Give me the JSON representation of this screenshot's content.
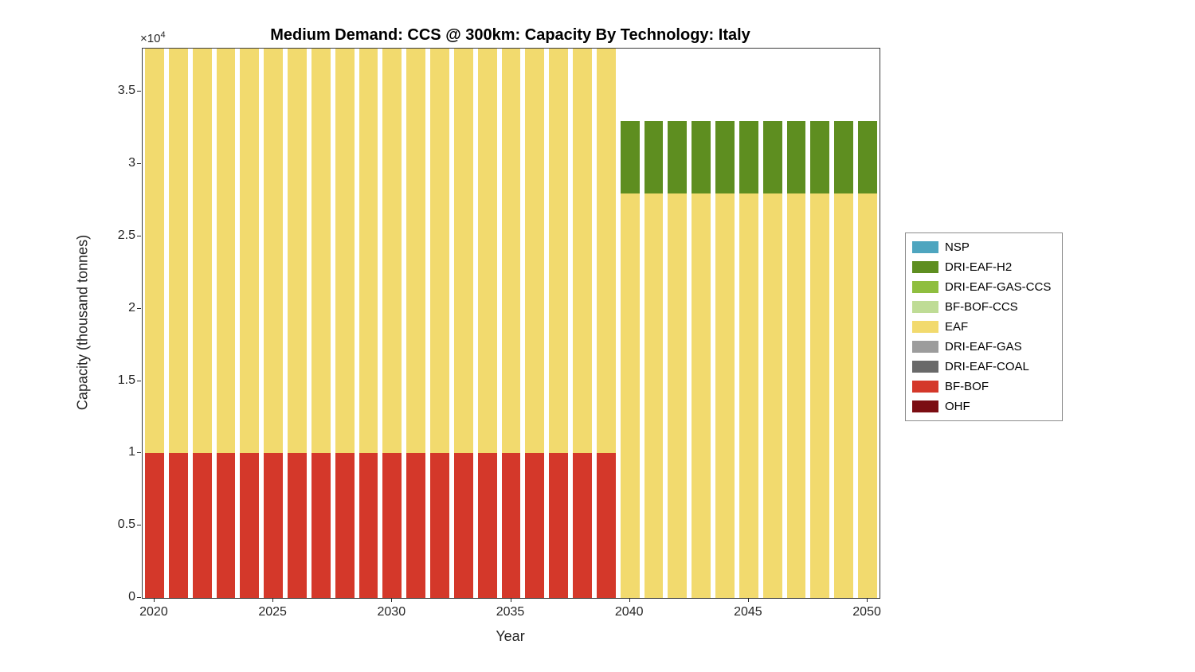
{
  "title": "Medium Demand: CCS @ 300km: Capacity By Technology: Italy",
  "axes": {
    "xlabel": "Year",
    "ylabel": "Capacity (thousand tonnes)",
    "y_multiplier_base": "×10",
    "y_multiplier_exp": "4"
  },
  "chart_data": {
    "type": "bar",
    "stacked": true,
    "title": "Medium Demand: CCS @ 300km: Capacity By Technology: Italy",
    "xlabel": "Year",
    "ylabel": "Capacity (thousand tonnes)",
    "ylim": [
      0,
      38000
    ],
    "bar_width_fraction": 0.8,
    "grid": false,
    "legend_position": "outside-right",
    "note": "Stacked bars 2020-2039 (BF-BOF 10000 + EAF 28000) reach the top of the y-axis at 3.8e4; 2040-2050 bars total 33000 (EAF 28000 + DRI-EAF-H2 5000). Y values shown in units of 1e4 thousand tonnes.",
    "x": [
      2020,
      2021,
      2022,
      2023,
      2024,
      2025,
      2026,
      2027,
      2028,
      2029,
      2030,
      2031,
      2032,
      2033,
      2034,
      2035,
      2036,
      2037,
      2038,
      2039,
      2040,
      2041,
      2042,
      2043,
      2044,
      2045,
      2046,
      2047,
      2048,
      2049,
      2050
    ],
    "x_ticks": [
      2020,
      2025,
      2030,
      2035,
      2040,
      2045,
      2050
    ],
    "y_ticks": [
      {
        "value": 0,
        "label": "0"
      },
      {
        "value": 5000,
        "label": "0.5"
      },
      {
        "value": 10000,
        "label": "1"
      },
      {
        "value": 15000,
        "label": "1.5"
      },
      {
        "value": 20000,
        "label": "2"
      },
      {
        "value": 25000,
        "label": "2.5"
      },
      {
        "value": 30000,
        "label": "3"
      },
      {
        "value": 35000,
        "label": "3.5"
      }
    ],
    "series": [
      {
        "name": "OHF",
        "color": "#7B0D12",
        "values": [
          0,
          0,
          0,
          0,
          0,
          0,
          0,
          0,
          0,
          0,
          0,
          0,
          0,
          0,
          0,
          0,
          0,
          0,
          0,
          0,
          0,
          0,
          0,
          0,
          0,
          0,
          0,
          0,
          0,
          0,
          0
        ]
      },
      {
        "name": "BF-BOF",
        "color": "#D4382A",
        "values": [
          10000,
          10000,
          10000,
          10000,
          10000,
          10000,
          10000,
          10000,
          10000,
          10000,
          10000,
          10000,
          10000,
          10000,
          10000,
          10000,
          10000,
          10000,
          10000,
          10000,
          0,
          0,
          0,
          0,
          0,
          0,
          0,
          0,
          0,
          0,
          0
        ]
      },
      {
        "name": "DRI-EAF-COAL",
        "color": "#696969",
        "values": [
          0,
          0,
          0,
          0,
          0,
          0,
          0,
          0,
          0,
          0,
          0,
          0,
          0,
          0,
          0,
          0,
          0,
          0,
          0,
          0,
          0,
          0,
          0,
          0,
          0,
          0,
          0,
          0,
          0,
          0,
          0
        ]
      },
      {
        "name": "DRI-EAF-GAS",
        "color": "#9C9C9C",
        "values": [
          0,
          0,
          0,
          0,
          0,
          0,
          0,
          0,
          0,
          0,
          0,
          0,
          0,
          0,
          0,
          0,
          0,
          0,
          0,
          0,
          0,
          0,
          0,
          0,
          0,
          0,
          0,
          0,
          0,
          0,
          0
        ]
      },
      {
        "name": "EAF",
        "color": "#F2DA6E",
        "values": [
          28000,
          28000,
          28000,
          28000,
          28000,
          28000,
          28000,
          28000,
          28000,
          28000,
          28000,
          28000,
          28000,
          28000,
          28000,
          28000,
          28000,
          28000,
          28000,
          28000,
          28000,
          28000,
          28000,
          28000,
          28000,
          28000,
          28000,
          28000,
          28000,
          28000,
          28000
        ]
      },
      {
        "name": "BF-BOF-CCS",
        "color": "#BFDC96",
        "values": [
          0,
          0,
          0,
          0,
          0,
          0,
          0,
          0,
          0,
          0,
          0,
          0,
          0,
          0,
          0,
          0,
          0,
          0,
          0,
          0,
          0,
          0,
          0,
          0,
          0,
          0,
          0,
          0,
          0,
          0,
          0
        ]
      },
      {
        "name": "DRI-EAF-GAS-CCS",
        "color": "#8FBE3F",
        "values": [
          0,
          0,
          0,
          0,
          0,
          0,
          0,
          0,
          0,
          0,
          0,
          0,
          0,
          0,
          0,
          0,
          0,
          0,
          0,
          0,
          0,
          0,
          0,
          0,
          0,
          0,
          0,
          0,
          0,
          0,
          0
        ]
      },
      {
        "name": "DRI-EAF-H2",
        "color": "#5E8E20",
        "values": [
          0,
          0,
          0,
          0,
          0,
          0,
          0,
          0,
          0,
          0,
          0,
          0,
          0,
          0,
          0,
          0,
          0,
          0,
          0,
          0,
          5000,
          5000,
          5000,
          5000,
          5000,
          5000,
          5000,
          5000,
          5000,
          5000,
          5000
        ]
      },
      {
        "name": "NSP",
        "color": "#4EA5BF",
        "values": [
          0,
          0,
          0,
          0,
          0,
          0,
          0,
          0,
          0,
          0,
          0,
          0,
          0,
          0,
          0,
          0,
          0,
          0,
          0,
          0,
          0,
          0,
          0,
          0,
          0,
          0,
          0,
          0,
          0,
          0,
          0
        ]
      }
    ],
    "legend": [
      "NSP",
      "DRI-EAF-H2",
      "DRI-EAF-GAS-CCS",
      "BF-BOF-CCS",
      "EAF",
      "DRI-EAF-GAS",
      "DRI-EAF-COAL",
      "BF-BOF",
      "OHF"
    ]
  }
}
